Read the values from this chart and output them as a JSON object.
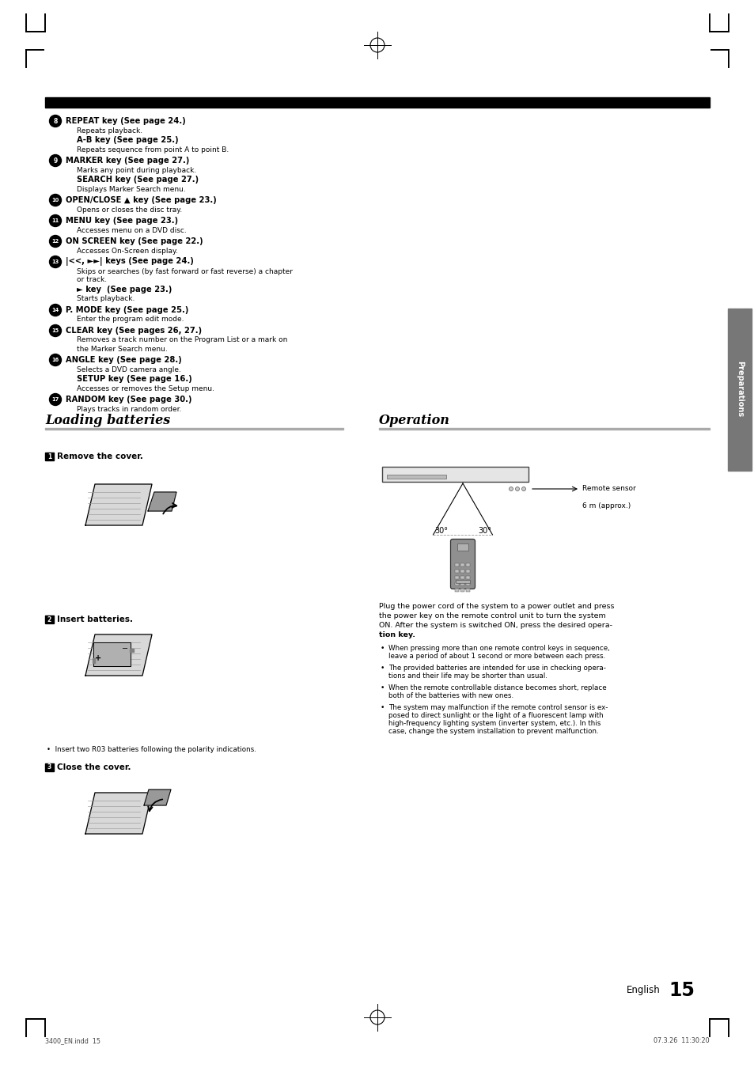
{
  "page_bg": "#ffffff",
  "left_items": [
    {
      "num": "8",
      "bold": "REPEAT key (See page 24.)",
      "desc": "Repeats playback.",
      "extra_bold": "A-B key (See page 25.)",
      "extra_desc": "Repeats sequence from point A to point B."
    },
    {
      "num": "9",
      "bold": "MARKER key (See page 27.)",
      "desc": "Marks any point during playback.",
      "extra_bold": "SEARCH key (See page 27.)",
      "extra_desc": "Displays Marker Search menu."
    },
    {
      "num": "10",
      "bold": "OPEN/CLOSE ▲ key (See page 23.)",
      "desc": "Opens or closes the disc tray.",
      "extra_bold": null,
      "extra_desc": null
    },
    {
      "num": "11",
      "bold": "MENU key (See page 23.)",
      "desc": "Accesses menu on a DVD disc.",
      "extra_bold": null,
      "extra_desc": null
    },
    {
      "num": "12",
      "bold": "ON SCREEN key (See page 22.)",
      "desc": "Accesses On-Screen display.",
      "extra_bold": null,
      "extra_desc": null
    },
    {
      "num": "13",
      "bold": "|<<, ►►| keys (See page 24.)",
      "desc": "Skips or searches (by fast forward or fast reverse) a chapter\nor track.",
      "extra_bold": "► key  (See page 23.)",
      "extra_desc": "Starts playback."
    },
    {
      "num": "14",
      "bold": "P. MODE key (See page 25.)",
      "desc": "Enter the program edit mode.",
      "extra_bold": null,
      "extra_desc": null
    },
    {
      "num": "15",
      "bold": "CLEAR key (See pages 26, 27.)",
      "desc": "Removes a track number on the Program List or a mark on\nthe Marker Search menu.",
      "extra_bold": null,
      "extra_desc": null
    },
    {
      "num": "16",
      "bold": "ANGLE key (See page 28.)",
      "desc": "Selects a DVD camera angle.",
      "extra_bold": "SETUP key (See page 16.)",
      "extra_desc": "Accesses or removes the Setup menu."
    },
    {
      "num": "17",
      "bold": "RANDOM key (See page 30.)",
      "desc": "Plays tracks in random order.",
      "extra_bold": null,
      "extra_desc": null
    }
  ],
  "loading_title": "Loading batteries",
  "op_title": "Operation",
  "step1": "Remove the cover.",
  "step2": "Insert batteries.",
  "step2_note": "Insert two R03 batteries following the polarity indications.",
  "step3": "Close the cover.",
  "remote_label": "Remote sensor",
  "distance_label": "6 m (approx.)",
  "angle1": "30°",
  "angle2": "30°",
  "op_para_lines": [
    "Plug the power cord of the system to a power outlet and press",
    "the power key on the remote control unit to turn the system",
    "ON. After the system is switched ON, press the desired opera-",
    "tion key."
  ],
  "bullets": [
    [
      "When pressing more than one remote control keys in sequence,",
      "leave a period of about 1 second or more between each press."
    ],
    [
      "The provided batteries are intended for use in checking opera-",
      "tions and their life may be shorter than usual."
    ],
    [
      "When the remote controllable distance becomes short, replace",
      "both of the batteries with new ones."
    ],
    [
      "The system may malfunction if the remote control sensor is ex-",
      "posed to direct sunlight or the light of a fluorescent lamp with",
      "high-frequency lighting system (inverter system, etc.). In this",
      "case, change the system installation to prevent malfunction."
    ]
  ],
  "page_num": "15",
  "footer_left": "3400_EN.indd  15",
  "footer_right": "07.3.26  11:30:20"
}
